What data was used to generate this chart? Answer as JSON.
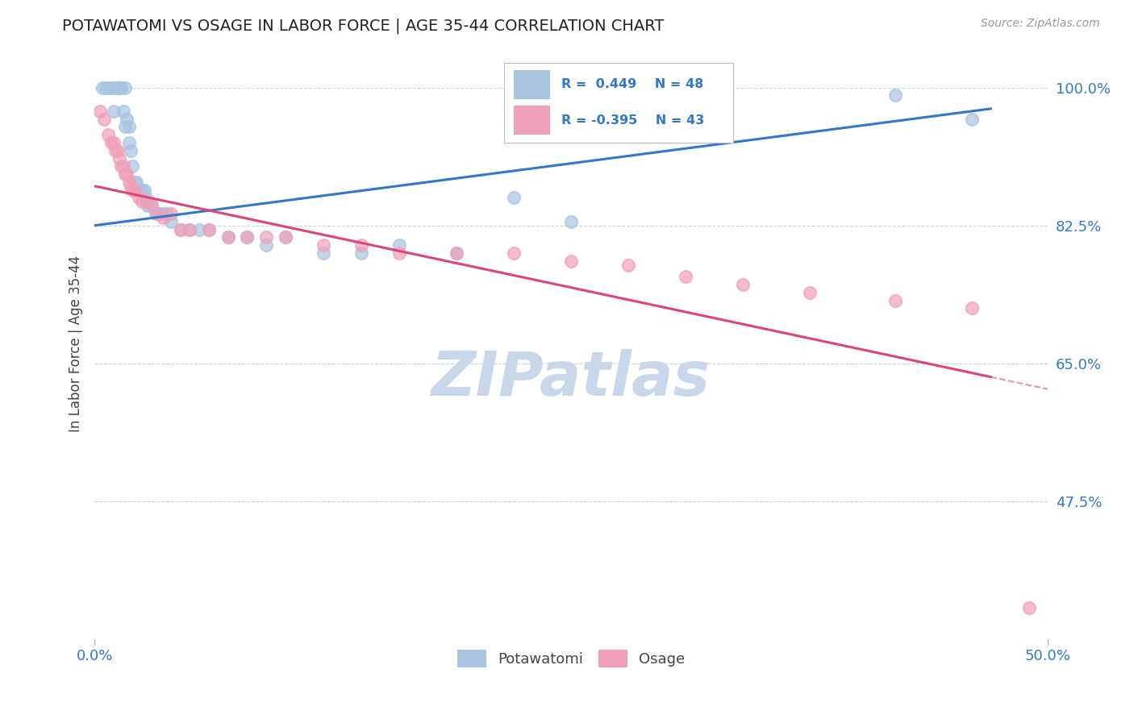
{
  "title": "POTAWATOMI VS OSAGE IN LABOR FORCE | AGE 35-44 CORRELATION CHART",
  "source_text": "Source: ZipAtlas.com",
  "ylabel": "In Labor Force | Age 35-44",
  "xlim": [
    0.0,
    0.5
  ],
  "ylim": [
    0.3,
    1.05
  ],
  "xtick_labels": [
    "0.0%",
    "50.0%"
  ],
  "xtick_vals": [
    0.0,
    0.5
  ],
  "ytick_vals": [
    0.475,
    0.65,
    0.825,
    1.0
  ],
  "ytick_labels": [
    "47.5%",
    "65.0%",
    "82.5%",
    "100.0%"
  ],
  "blue_color": "#a8c4e0",
  "pink_color": "#f0a0b8",
  "blue_line_color": "#3377cc",
  "pink_line_color": "#dd4477",
  "watermark_color": "#c8d8ea",
  "background_color": "#ffffff",
  "grid_color": "#c8d4de",
  "potawatomi_x": [
    0.004,
    0.006,
    0.008,
    0.009,
    0.01,
    0.01,
    0.012,
    0.013,
    0.013,
    0.014,
    0.015,
    0.016,
    0.016,
    0.017,
    0.018,
    0.018,
    0.019,
    0.02,
    0.021,
    0.022,
    0.023,
    0.024,
    0.025,
    0.026,
    0.027,
    0.028,
    0.03,
    0.032,
    0.034,
    0.036,
    0.038,
    0.04,
    0.045,
    0.05,
    0.055,
    0.06,
    0.07,
    0.08,
    0.09,
    0.1,
    0.12,
    0.14,
    0.16,
    0.19,
    0.22,
    0.25,
    0.42,
    0.46
  ],
  "potawatomi_y": [
    1.0,
    1.0,
    1.0,
    1.0,
    1.0,
    0.97,
    1.0,
    1.0,
    1.0,
    1.0,
    0.97,
    1.0,
    0.95,
    0.96,
    0.95,
    0.93,
    0.92,
    0.9,
    0.88,
    0.88,
    0.87,
    0.87,
    0.87,
    0.87,
    0.86,
    0.85,
    0.85,
    0.84,
    0.84,
    0.84,
    0.84,
    0.83,
    0.82,
    0.82,
    0.82,
    0.82,
    0.81,
    0.81,
    0.8,
    0.81,
    0.79,
    0.79,
    0.8,
    0.79,
    0.86,
    0.83,
    0.99,
    0.96
  ],
  "osage_x": [
    0.003,
    0.005,
    0.007,
    0.009,
    0.01,
    0.011,
    0.012,
    0.013,
    0.014,
    0.015,
    0.016,
    0.017,
    0.018,
    0.019,
    0.02,
    0.021,
    0.023,
    0.025,
    0.027,
    0.03,
    0.033,
    0.036,
    0.04,
    0.045,
    0.05,
    0.06,
    0.07,
    0.08,
    0.09,
    0.1,
    0.12,
    0.14,
    0.16,
    0.19,
    0.22,
    0.25,
    0.28,
    0.31,
    0.34,
    0.375,
    0.42,
    0.46,
    0.49
  ],
  "osage_y": [
    0.97,
    0.96,
    0.94,
    0.93,
    0.93,
    0.92,
    0.92,
    0.91,
    0.9,
    0.9,
    0.89,
    0.89,
    0.88,
    0.875,
    0.87,
    0.87,
    0.86,
    0.855,
    0.855,
    0.85,
    0.84,
    0.835,
    0.84,
    0.82,
    0.82,
    0.82,
    0.81,
    0.81,
    0.81,
    0.81,
    0.8,
    0.8,
    0.79,
    0.79,
    0.79,
    0.78,
    0.775,
    0.76,
    0.75,
    0.74,
    0.73,
    0.72,
    0.34
  ],
  "r_blue": 0.449,
  "n_blue": 48,
  "r_pink": -0.395,
  "n_pink": 43
}
